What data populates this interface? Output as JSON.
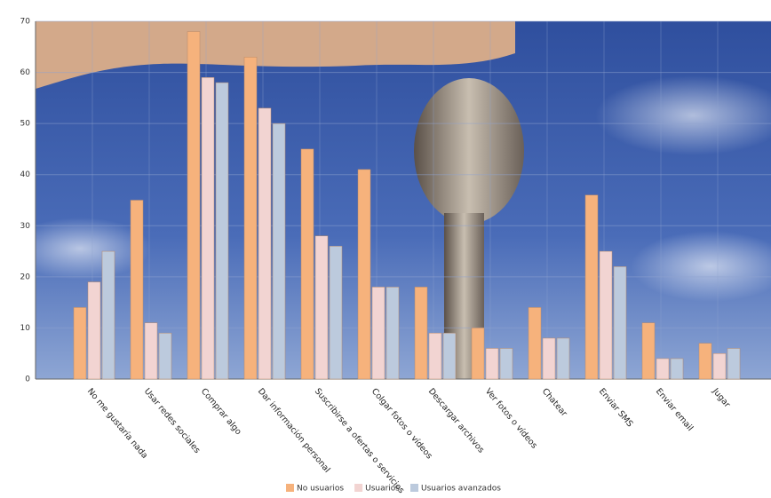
{
  "chart_data": {
    "type": "bar",
    "categories": [
      "No me gustaría nada",
      "Usar redes sociales",
      "Comprar algo",
      "Dar información personal",
      "Suscribirse a ofertas o servicios",
      "Colgar fotos o vídeos",
      "Descargar archivos",
      "Ver fotos o vídeos",
      "Chatear",
      "Enviar SMS",
      "Enviar email",
      "Jugar"
    ],
    "series": [
      {
        "name": "No usuarios",
        "color": "#f6b27c",
        "values": [
          14,
          35,
          68,
          63,
          45,
          41,
          18,
          10,
          14,
          36,
          11,
          7
        ]
      },
      {
        "name": "Usuarios",
        "color": "#f2d4d2",
        "values": [
          19,
          11,
          59,
          53,
          28,
          18,
          9,
          6,
          8,
          25,
          4,
          5
        ]
      },
      {
        "name": "Usuarios avanzados",
        "color": "#bccadd",
        "values": [
          25,
          9,
          58,
          50,
          26,
          18,
          9,
          6,
          8,
          22,
          4,
          6
        ]
      }
    ],
    "ylim": [
      0,
      70
    ],
    "yticks": [
      0,
      10,
      20,
      30,
      40,
      50,
      60,
      70
    ],
    "grid": true
  }
}
